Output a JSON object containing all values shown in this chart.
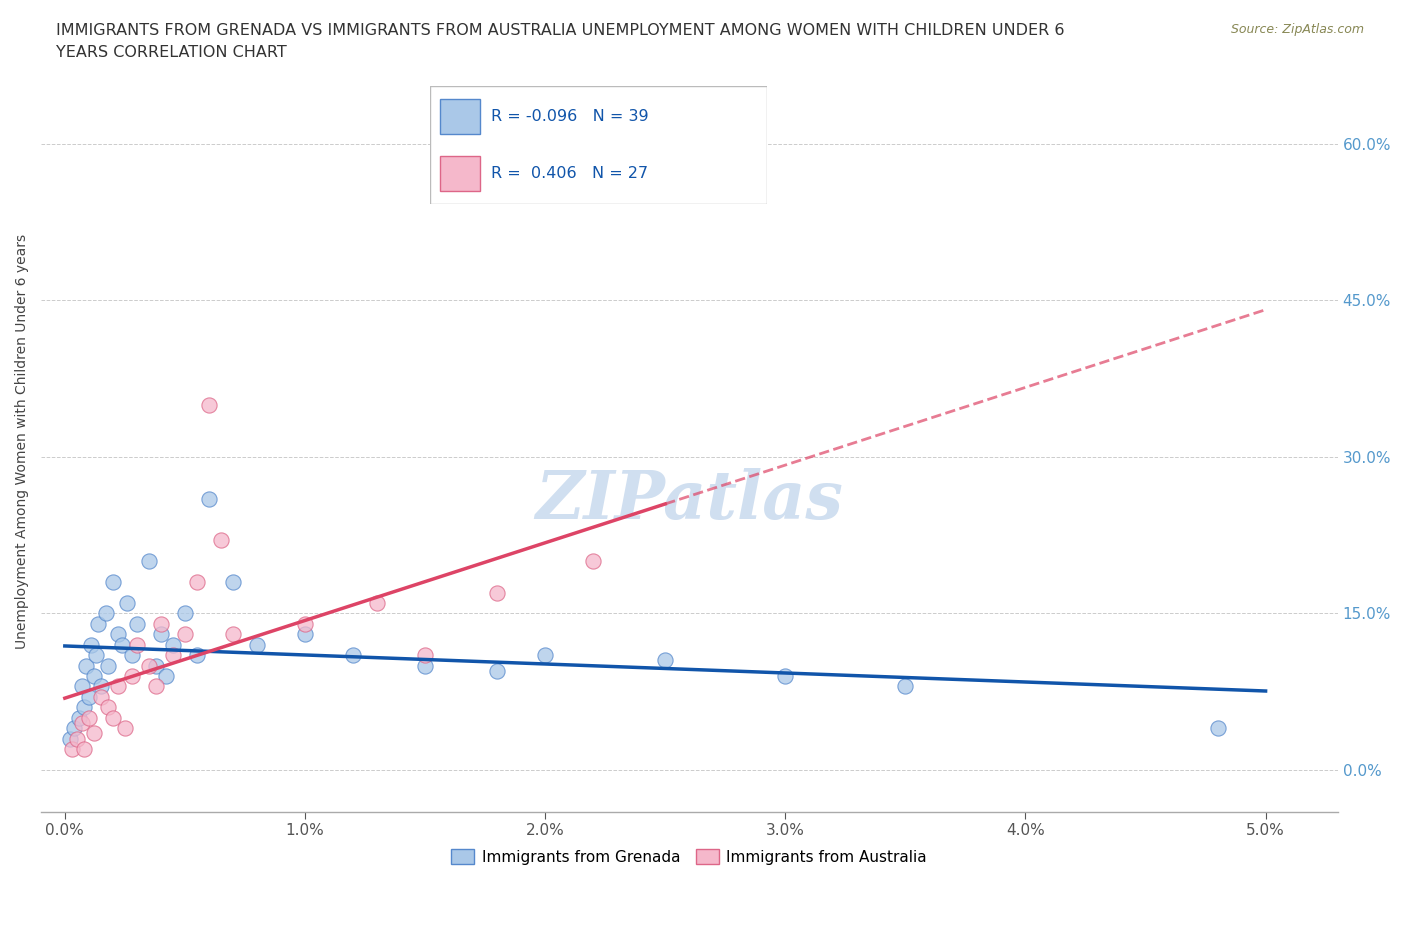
{
  "title_line1": "IMMIGRANTS FROM GRENADA VS IMMIGRANTS FROM AUSTRALIA UNEMPLOYMENT AMONG WOMEN WITH CHILDREN UNDER 6",
  "title_line2": "YEARS CORRELATION CHART",
  "source": "Source: ZipAtlas.com",
  "xlabel_ticks": [
    "0.0%",
    "1.0%",
    "2.0%",
    "3.0%",
    "4.0%",
    "5.0%"
  ],
  "ylabel_ticks": [
    "0.0%",
    "15.0%",
    "30.0%",
    "45.0%",
    "60.0%"
  ],
  "xlabel_vals": [
    0.0,
    1.0,
    2.0,
    3.0,
    4.0,
    5.0
  ],
  "ylabel_vals": [
    0.0,
    15.0,
    30.0,
    45.0,
    60.0
  ],
  "xlim": [
    -0.1,
    5.3
  ],
  "ylim": [
    -4.0,
    67.0
  ],
  "ylabel": "Unemployment Among Women with Children Under 6 years",
  "grenada_color": "#aac8e8",
  "australia_color": "#f5b8cb",
  "grenada_edge": "#5588cc",
  "australia_edge": "#dd6688",
  "trend_grenada_color": "#1155aa",
  "trend_australia_color": "#dd4466",
  "R_grenada": -0.096,
  "N_grenada": 39,
  "R_australia": 0.406,
  "N_australia": 27,
  "watermark": "ZIPatlas",
  "watermark_color": "#d0dff0",
  "legend_label_grenada": "Immigrants from Grenada",
  "legend_label_australia": "Immigrants from Australia",
  "tick_color_right": "#5599cc",
  "grenada_x": [
    0.02,
    0.04,
    0.06,
    0.07,
    0.08,
    0.09,
    0.1,
    0.11,
    0.12,
    0.13,
    0.14,
    0.15,
    0.17,
    0.18,
    0.2,
    0.22,
    0.24,
    0.26,
    0.28,
    0.3,
    0.35,
    0.38,
    0.4,
    0.42,
    0.45,
    0.5,
    0.55,
    0.6,
    0.7,
    0.8,
    1.0,
    1.2,
    1.5,
    1.8,
    2.0,
    2.5,
    3.0,
    3.5,
    4.8
  ],
  "grenada_y": [
    3.0,
    4.0,
    5.0,
    8.0,
    6.0,
    10.0,
    7.0,
    12.0,
    9.0,
    11.0,
    14.0,
    8.0,
    15.0,
    10.0,
    18.0,
    13.0,
    12.0,
    16.0,
    11.0,
    14.0,
    20.0,
    10.0,
    13.0,
    9.0,
    12.0,
    15.0,
    11.0,
    26.0,
    18.0,
    12.0,
    13.0,
    11.0,
    10.0,
    9.5,
    11.0,
    10.5,
    9.0,
    8.0,
    4.0
  ],
  "australia_x": [
    0.03,
    0.05,
    0.07,
    0.08,
    0.1,
    0.12,
    0.15,
    0.18,
    0.2,
    0.22,
    0.25,
    0.28,
    0.3,
    0.35,
    0.38,
    0.4,
    0.45,
    0.5,
    0.55,
    0.6,
    0.65,
    0.7,
    1.0,
    1.3,
    1.5,
    1.8,
    2.2
  ],
  "australia_y": [
    2.0,
    3.0,
    4.5,
    2.0,
    5.0,
    3.5,
    7.0,
    6.0,
    5.0,
    8.0,
    4.0,
    9.0,
    12.0,
    10.0,
    8.0,
    14.0,
    11.0,
    13.0,
    18.0,
    35.0,
    22.0,
    13.0,
    14.0,
    16.0,
    11.0,
    17.0,
    20.0
  ]
}
